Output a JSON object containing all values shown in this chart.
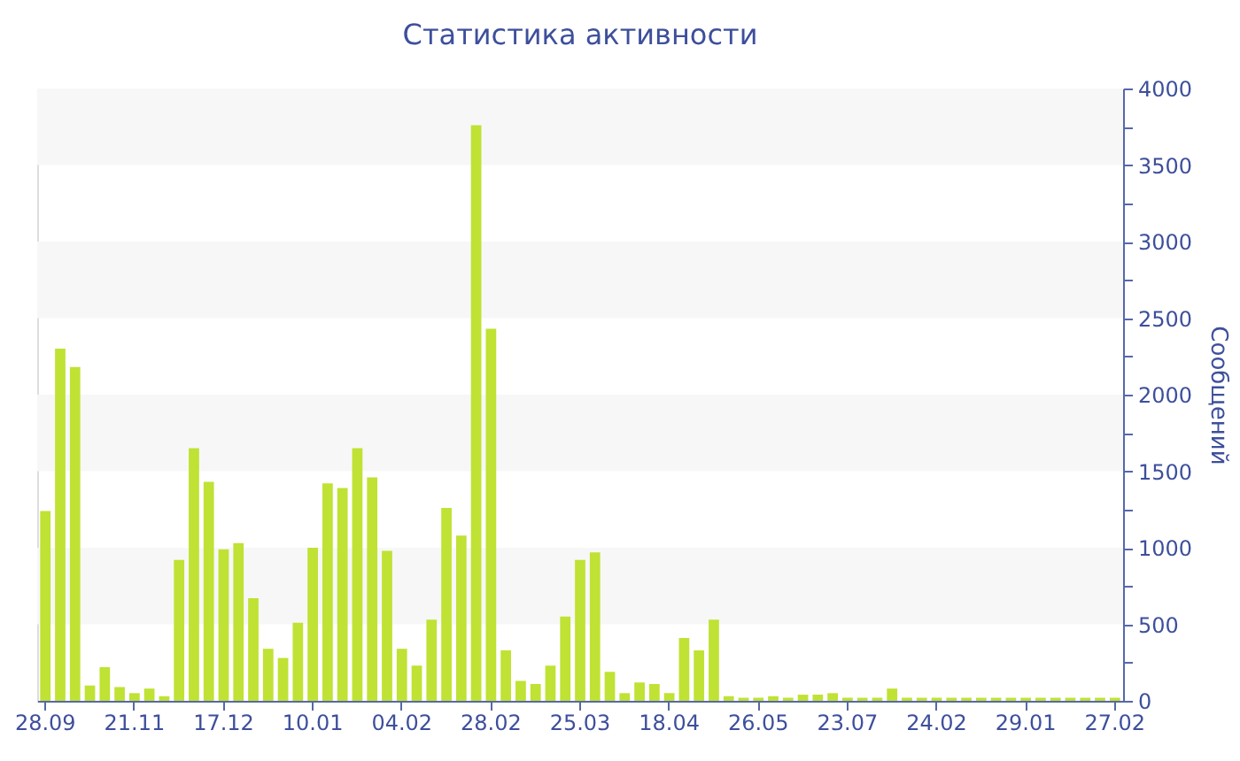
{
  "chart_data": {
    "type": "bar",
    "title": "Статистика активности",
    "ylabel": "Сообщений",
    "categories": [
      "28.09",
      null,
      null,
      null,
      null,
      null,
      "21.11",
      null,
      null,
      null,
      null,
      null,
      "17.12",
      null,
      null,
      null,
      null,
      null,
      "10.01",
      null,
      null,
      null,
      null,
      null,
      "04.02",
      null,
      null,
      null,
      null,
      null,
      "28.02",
      null,
      null,
      null,
      null,
      null,
      "25.03",
      null,
      null,
      null,
      null,
      null,
      "18.04",
      null,
      null,
      null,
      null,
      null,
      "26.05",
      null,
      null,
      null,
      null,
      null,
      "23.07",
      null,
      null,
      null,
      null,
      null,
      "24.02",
      null,
      null,
      null,
      null,
      null,
      "29.01",
      null,
      null,
      null,
      null,
      null,
      "27.02"
    ],
    "values": [
      1240,
      2300,
      2180,
      100,
      220,
      90,
      50,
      80,
      30,
      920,
      1650,
      1430,
      990,
      1030,
      670,
      340,
      280,
      510,
      1000,
      1420,
      1390,
      1650,
      1460,
      980,
      340,
      230,
      530,
      1260,
      1080,
      3760,
      2430,
      330,
      130,
      110,
      230,
      550,
      920,
      970,
      190,
      50,
      120,
      110,
      50,
      410,
      330,
      530,
      30,
      20,
      20,
      30,
      20,
      40,
      40,
      50,
      20,
      20,
      20,
      80,
      20,
      20,
      20,
      20,
      20,
      20,
      20,
      20,
      20,
      20,
      20,
      20,
      20,
      20,
      20
    ],
    "color": "#bfe234",
    "ylim": [
      0,
      4000
    ],
    "yticks": [
      0,
      {
        "value": 250,
        "label": null
      },
      500,
      {
        "value": 750,
        "label": null
      },
      1000,
      {
        "value": 1250,
        "label": null
      },
      1500,
      {
        "value": 1750,
        "label": null
      },
      2000,
      {
        "value": 2250,
        "label": null
      },
      2500,
      {
        "value": 2750,
        "label": null
      },
      3000,
      {
        "value": 3250,
        "label": null
      },
      3500,
      {
        "value": 3750,
        "label": null
      },
      4000
    ],
    "bands": [
      {
        "axis": "y",
        "from": 500,
        "to": 1000,
        "color": "#f7f7f7"
      },
      {
        "axis": "y",
        "from": 1500,
        "to": 2000,
        "color": "#f7f7f7"
      },
      {
        "axis": "y",
        "from": 2500,
        "to": 3000,
        "color": "#f7f7f7"
      },
      {
        "axis": "y",
        "from": 3500,
        "to": 4000,
        "color": "#f7f7f7"
      }
    ]
  }
}
